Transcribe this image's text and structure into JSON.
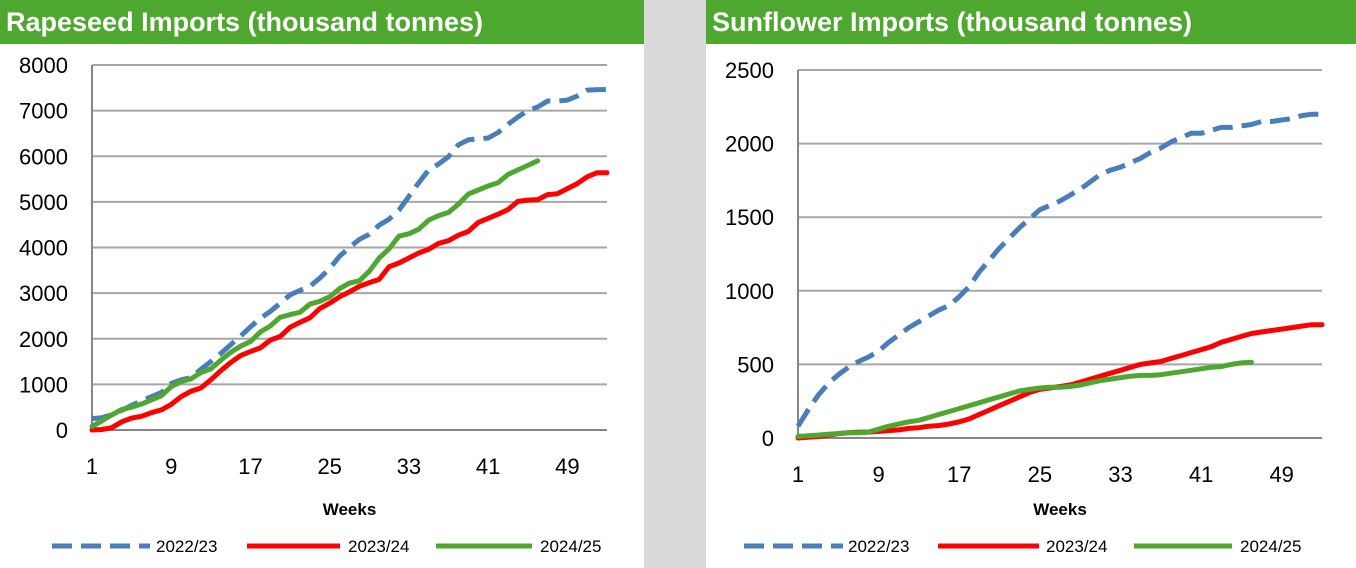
{
  "chart_data": [
    {
      "type": "line",
      "title": "Rapeseed Imports (thousand tonnes)",
      "xlabel": "Weeks",
      "ylabel": "",
      "xlim": [
        1,
        53
      ],
      "ylim": [
        0,
        8000
      ],
      "y_ticks": [
        0,
        1000,
        2000,
        3000,
        4000,
        5000,
        6000,
        7000,
        8000
      ],
      "x_ticks": [
        1,
        9,
        17,
        25,
        33,
        41,
        49
      ],
      "grid": "horizontal",
      "legend_position": "bottom",
      "series": [
        {
          "name": "2022/23",
          "color": "#4a7ebb",
          "style": "dashed",
          "x": [
            1,
            2,
            3,
            4,
            5,
            6,
            7,
            8,
            9,
            10,
            11,
            12,
            13,
            14,
            15,
            16,
            17,
            18,
            19,
            20,
            21,
            22,
            23,
            24,
            25,
            26,
            27,
            28,
            29,
            30,
            31,
            32,
            33,
            34,
            35,
            36,
            37,
            38,
            39,
            40,
            41,
            42,
            43,
            44,
            45,
            46,
            47,
            48,
            49,
            50,
            51,
            52,
            53
          ],
          "values": [
            250,
            270,
            330,
            430,
            540,
            640,
            730,
            820,
            1020,
            1100,
            1150,
            1330,
            1500,
            1680,
            1870,
            2060,
            2260,
            2450,
            2600,
            2780,
            2960,
            3060,
            3150,
            3330,
            3540,
            3810,
            4000,
            4180,
            4290,
            4490,
            4620,
            4820,
            5120,
            5420,
            5700,
            5830,
            5990,
            6250,
            6360,
            6380,
            6400,
            6520,
            6700,
            6860,
            7000,
            7080,
            7210,
            7210,
            7230,
            7320,
            7450,
            7460,
            7460
          ]
        },
        {
          "name": "2023/24",
          "color": "#ff0000",
          "style": "solid",
          "x": [
            1,
            2,
            3,
            4,
            5,
            6,
            7,
            8,
            9,
            10,
            11,
            12,
            13,
            14,
            15,
            16,
            17,
            18,
            19,
            20,
            21,
            22,
            23,
            24,
            25,
            26,
            27,
            28,
            29,
            30,
            31,
            32,
            33,
            34,
            35,
            36,
            37,
            38,
            39,
            40,
            41,
            42,
            43,
            44,
            45,
            46,
            47,
            48,
            49,
            50,
            51,
            52,
            53
          ],
          "values": [
            0,
            10,
            50,
            180,
            260,
            300,
            380,
            440,
            560,
            730,
            850,
            920,
            1100,
            1300,
            1480,
            1630,
            1720,
            1800,
            1970,
            2050,
            2250,
            2360,
            2460,
            2660,
            2780,
            2920,
            3030,
            3150,
            3230,
            3300,
            3580,
            3660,
            3770,
            3880,
            3960,
            4090,
            4150,
            4270,
            4350,
            4550,
            4640,
            4730,
            4830,
            5010,
            5040,
            5050,
            5160,
            5180,
            5290,
            5400,
            5550,
            5640,
            5640
          ]
        },
        {
          "name": "2024/25",
          "color": "#4ea72e",
          "style": "solid",
          "x": [
            1,
            2,
            3,
            4,
            5,
            6,
            7,
            8,
            9,
            10,
            11,
            12,
            13,
            14,
            15,
            16,
            17,
            18,
            19,
            20,
            21,
            22,
            23,
            24,
            25,
            26,
            27,
            28,
            29,
            30,
            31,
            32,
            33,
            34,
            35,
            36,
            37,
            38,
            39,
            40,
            41,
            42,
            43,
            44,
            45,
            46
          ],
          "values": [
            80,
            200,
            330,
            450,
            500,
            570,
            660,
            750,
            950,
            1060,
            1120,
            1260,
            1340,
            1530,
            1700,
            1840,
            1940,
            2150,
            2280,
            2470,
            2530,
            2580,
            2760,
            2820,
            2920,
            3100,
            3220,
            3270,
            3480,
            3770,
            3970,
            4250,
            4300,
            4400,
            4600,
            4700,
            4770,
            4950,
            5170,
            5260,
            5350,
            5420,
            5600,
            5700,
            5800,
            5900
          ]
        }
      ]
    },
    {
      "type": "line",
      "title": "Sunflower Imports (thousand tonnes)",
      "xlabel": "Weeks",
      "ylabel": "",
      "xlim": [
        1,
        53
      ],
      "ylim": [
        0,
        2500
      ],
      "y_ticks": [
        0,
        500,
        1000,
        1500,
        2000,
        2500
      ],
      "x_ticks": [
        1,
        9,
        17,
        25,
        33,
        41,
        49
      ],
      "grid": "horizontal",
      "legend_position": "bottom",
      "series": [
        {
          "name": "2022/23",
          "color": "#4a7ebb",
          "style": "dashed",
          "x": [
            1,
            2,
            3,
            4,
            5,
            6,
            7,
            8,
            9,
            10,
            11,
            12,
            13,
            14,
            15,
            16,
            17,
            18,
            19,
            20,
            21,
            22,
            23,
            24,
            25,
            26,
            27,
            28,
            29,
            30,
            31,
            32,
            33,
            34,
            35,
            36,
            37,
            38,
            39,
            40,
            41,
            42,
            43,
            44,
            45,
            46,
            47,
            48,
            49,
            50,
            51,
            52,
            53
          ],
          "values": [
            80,
            190,
            290,
            370,
            430,
            480,
            520,
            550,
            590,
            650,
            700,
            750,
            790,
            830,
            870,
            900,
            960,
            1030,
            1130,
            1210,
            1290,
            1360,
            1430,
            1490,
            1550,
            1580,
            1610,
            1650,
            1690,
            1740,
            1790,
            1820,
            1840,
            1870,
            1900,
            1940,
            1970,
            2010,
            2040,
            2070,
            2070,
            2090,
            2110,
            2110,
            2120,
            2130,
            2150,
            2150,
            2160,
            2170,
            2190,
            2200,
            2200
          ]
        },
        {
          "name": "2023/24",
          "color": "#ff0000",
          "style": "solid",
          "x": [
            1,
            2,
            3,
            4,
            5,
            6,
            7,
            8,
            9,
            10,
            11,
            12,
            13,
            14,
            15,
            16,
            17,
            18,
            19,
            20,
            21,
            22,
            23,
            24,
            25,
            26,
            27,
            28,
            29,
            30,
            31,
            32,
            33,
            34,
            35,
            36,
            37,
            38,
            39,
            40,
            41,
            42,
            43,
            44,
            45,
            46,
            47,
            48,
            49,
            50,
            51,
            52,
            53
          ],
          "values": [
            0,
            5,
            10,
            20,
            30,
            35,
            40,
            40,
            45,
            50,
            55,
            65,
            70,
            80,
            85,
            95,
            110,
            130,
            160,
            190,
            220,
            250,
            280,
            310,
            330,
            340,
            350,
            360,
            380,
            400,
            420,
            440,
            460,
            480,
            500,
            510,
            520,
            540,
            560,
            580,
            600,
            620,
            650,
            670,
            690,
            710,
            720,
            730,
            740,
            750,
            760,
            770,
            770
          ]
        },
        {
          "name": "2024/25",
          "color": "#4ea72e",
          "style": "solid",
          "x": [
            1,
            2,
            3,
            4,
            5,
            6,
            7,
            8,
            9,
            10,
            11,
            12,
            13,
            14,
            15,
            16,
            17,
            18,
            19,
            20,
            21,
            22,
            23,
            24,
            25,
            26,
            27,
            28,
            29,
            30,
            31,
            32,
            33,
            34,
            35,
            36,
            37,
            38,
            39,
            40,
            41,
            42,
            43,
            44,
            45,
            46
          ],
          "values": [
            10,
            15,
            20,
            25,
            30,
            35,
            35,
            40,
            60,
            80,
            95,
            110,
            120,
            140,
            160,
            180,
            200,
            220,
            240,
            260,
            280,
            300,
            320,
            330,
            340,
            345,
            345,
            350,
            360,
            375,
            390,
            400,
            410,
            420,
            425,
            425,
            430,
            440,
            450,
            460,
            470,
            480,
            485,
            500,
            510,
            515
          ]
        }
      ]
    }
  ]
}
